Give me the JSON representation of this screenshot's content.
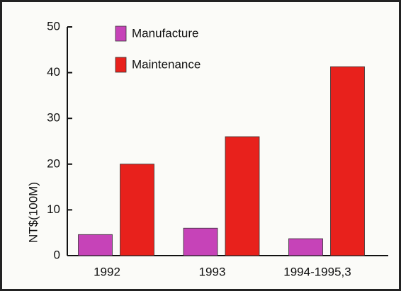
{
  "chart_data": {
    "type": "bar",
    "ylabel": "NT$(100M)",
    "categories": [
      "1992",
      "1993",
      "1994-1995,3"
    ],
    "series": [
      {
        "name": "Manufacture",
        "color": "#c643b8",
        "values": [
          4.6,
          6.0,
          3.7
        ]
      },
      {
        "name": "Maintenance",
        "color": "#e8211c",
        "values": [
          20,
          26,
          41.3
        ]
      }
    ],
    "ylim": [
      0,
      50
    ],
    "yticks": [
      0,
      10,
      20,
      30,
      40,
      50
    ],
    "grid": false
  }
}
